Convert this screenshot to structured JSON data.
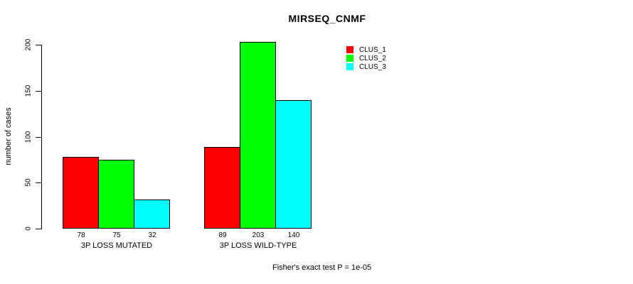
{
  "chart_data": {
    "type": "bar",
    "title": "MIRSEQ_CNMF",
    "categories": [
      "3P LOSS MUTATED",
      "3P LOSS WILD-TYPE"
    ],
    "series": [
      {
        "name": "CLUS_1",
        "color": "#ff0000",
        "values": [
          78,
          89
        ]
      },
      {
        "name": "CLUS_2",
        "color": "#00ff00",
        "values": [
          75,
          203
        ]
      },
      {
        "name": "CLUS_3",
        "color": "#00ffff",
        "values": [
          32,
          140
        ]
      }
    ],
    "ylabel": "number of cases",
    "yticks": [
      0,
      50,
      100,
      150,
      200
    ],
    "ylim": [
      0,
      200
    ],
    "grid": false,
    "legend_position": "top-right",
    "bar_border_color": "#000000",
    "value_labels_shown": true,
    "annotation": "Fisher's exact test P = 1e-05"
  }
}
